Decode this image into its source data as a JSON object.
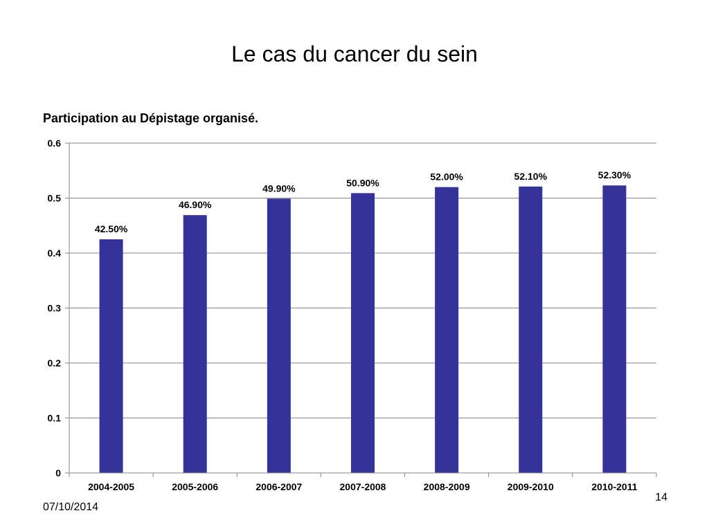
{
  "slide": {
    "title": "Le cas du cancer du sein",
    "date": "07/10/2014",
    "number": "14"
  },
  "chart_data": {
    "type": "bar",
    "title": "Participation au Dépistage organisé.",
    "categories": [
      "2004-2005",
      "2005-2006",
      "2006-2007",
      "2007-2008",
      "2008-2009",
      "2009-2010",
      "2010-2011"
    ],
    "values": [
      0.425,
      0.469,
      0.499,
      0.509,
      0.52,
      0.521,
      0.523
    ],
    "data_labels": [
      "42.50%",
      "46.90%",
      "49.90%",
      "50.90%",
      "52.00%",
      "52.10%",
      "52.30%"
    ],
    "y_ticks": [
      "0",
      "0.1",
      "0.2",
      "0.3",
      "0.4",
      "0.5",
      "0.6"
    ],
    "ylim": [
      0,
      0.6
    ],
    "xlabel": "",
    "ylabel": "",
    "grid": true,
    "legend": false,
    "colors": {
      "bar": "#333399",
      "grid": "#868686",
      "axis": "#868686"
    }
  }
}
